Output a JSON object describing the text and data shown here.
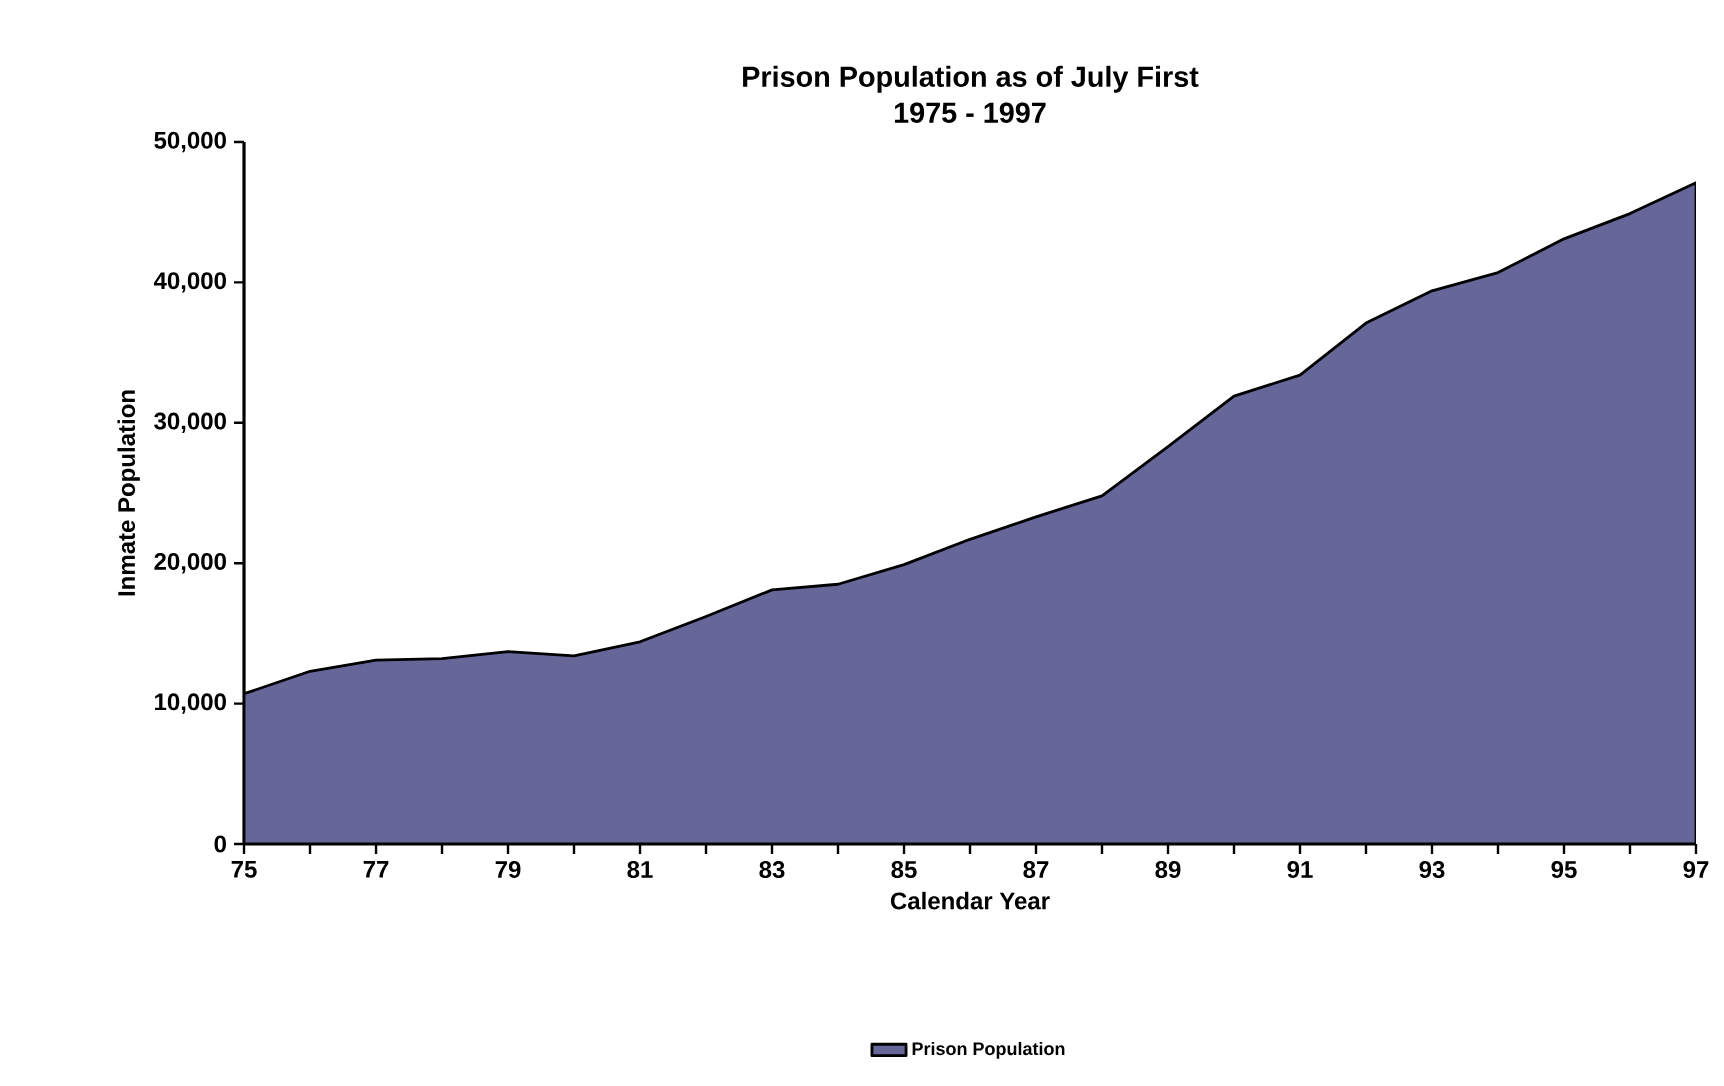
{
  "chart_data": {
    "type": "area",
    "title": "Prison Population as of July First",
    "subtitle": "1975 - 1997",
    "xlabel": "Calendar Year",
    "ylabel": "Inmate Population",
    "x": [
      75,
      76,
      77,
      78,
      79,
      80,
      81,
      82,
      83,
      84,
      85,
      86,
      87,
      88,
      89,
      90,
      91,
      92,
      93,
      94,
      95,
      96,
      97
    ],
    "series": [
      {
        "name": "Prison Population",
        "color": "#666699",
        "values": [
          10700,
          12300,
          13100,
          13200,
          13700,
          13400,
          14400,
          16200,
          18100,
          18500,
          19900,
          21700,
          23300,
          24800,
          28300,
          31900,
          33400,
          37100,
          39400,
          40700,
          43100,
          44900,
          47100
        ]
      }
    ],
    "xlim": [
      75,
      97
    ],
    "xticks": [
      75,
      {
        "value": 76,
        "label": null
      },
      77,
      {
        "value": 78,
        "label": null
      },
      79,
      {
        "value": 80,
        "label": null
      },
      81,
      {
        "value": 82,
        "label": null
      },
      83,
      {
        "value": 84,
        "label": null
      },
      85,
      {
        "value": 86,
        "label": null
      },
      87,
      {
        "value": 88,
        "label": null
      },
      89,
      {
        "value": 90,
        "label": null
      },
      91,
      {
        "value": 92,
        "label": null
      },
      93,
      {
        "value": 94,
        "label": null
      },
      95,
      {
        "value": 96,
        "label": null
      },
      97
    ],
    "ylim": [
      0,
      50000
    ],
    "yticks": [
      {
        "value": 0,
        "label": "0"
      },
      {
        "value": 10000,
        "label": "10,000"
      },
      {
        "value": 20000,
        "label": "20,000"
      },
      {
        "value": 30000,
        "label": "30,000"
      },
      {
        "value": 40000,
        "label": "40,000"
      },
      {
        "value": 50000,
        "label": "50,000"
      }
    ],
    "grid": false,
    "legend": "bottom"
  }
}
